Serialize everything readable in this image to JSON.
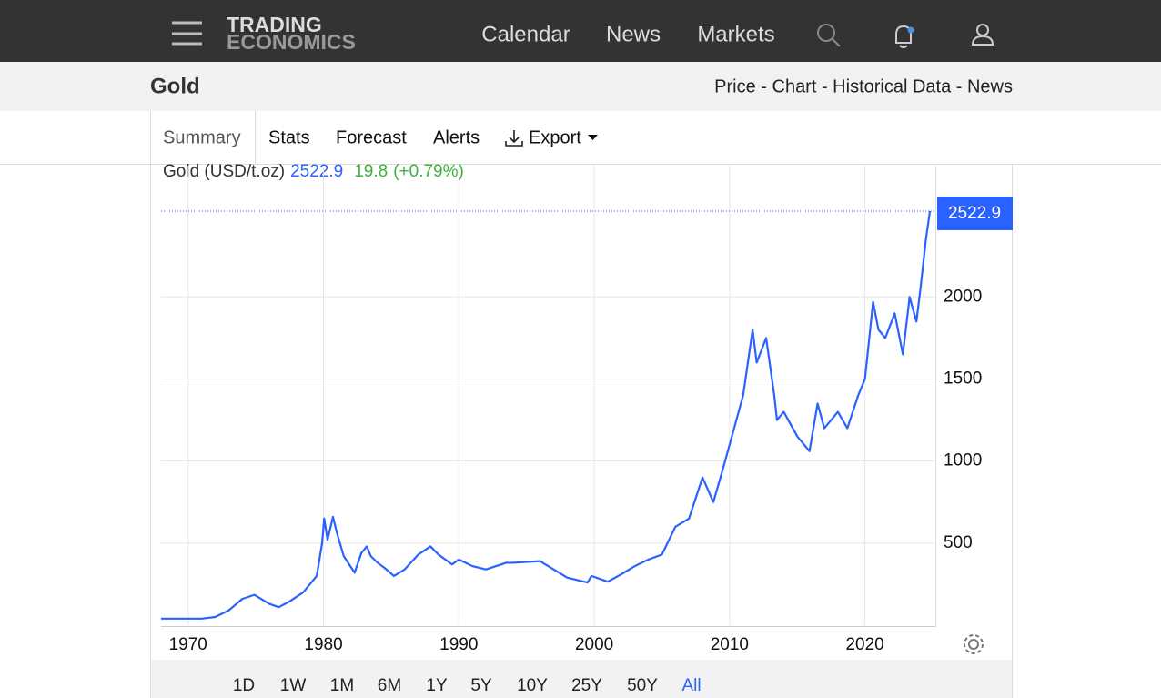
{
  "nav": {
    "logo_top": "TRADING",
    "logo_bottom": "ECONOMICS",
    "links": [
      "Calendar",
      "News",
      "Markets"
    ]
  },
  "subheader": {
    "title": "Gold",
    "links": "Price - Chart - Historical Data - News"
  },
  "tabs": [
    "Summary",
    "Stats",
    "Forecast",
    "Alerts",
    "Export"
  ],
  "ranges": [
    "1D",
    "1W",
    "1M",
    "6M",
    "1Y",
    "5Y",
    "10Y",
    "25Y",
    "50Y",
    "All"
  ],
  "active_range": "All",
  "chart_data": {
    "type": "line",
    "last_value": 2522.9,
    "change": 19.8,
    "change_label": "(+0.79%)",
    "x": [
      1968,
      1971,
      1972,
      1973,
      1974,
      1974.9,
      1976,
      1976.7,
      1977.5,
      1978.5,
      1979.5,
      1979.9,
      1980.05,
      1980.3,
      1980.7,
      1981,
      1981.5,
      1982.3,
      1982.8,
      1983.2,
      1983.5,
      1984,
      1984.5,
      1985.2,
      1986,
      1987,
      1987.9,
      1988.5,
      1989.5,
      1990,
      1991,
      1992,
      1993.5,
      1994,
      1996,
      1997,
      1998,
      1999.5,
      1999.8,
      2001,
      2002,
      2003,
      2004,
      2005,
      2006,
      2007,
      2008,
      2008.8,
      2009.5,
      2010,
      2011,
      2011.7,
      2012,
      2012.7,
      2013.3,
      2013.5,
      2014,
      2015,
      2015.9,
      2016.5,
      2017,
      2018,
      2018.7,
      2019.5,
      2020,
      2020.6,
      2021,
      2021.5,
      2022.2,
      2022.8,
      2023.3,
      2023.8,
      2024.1,
      2024.5,
      2024.8
    ],
    "series": [
      {
        "name": "Gold (USD/t.oz)",
        "color": "#2962ff",
        "values": [
          40,
          40,
          50,
          90,
          160,
          185,
          130,
          110,
          145,
          200,
          300,
          500,
          650,
          520,
          660,
          560,
          420,
          320,
          440,
          480,
          420,
          380,
          350,
          300,
          340,
          430,
          480,
          430,
          370,
          400,
          360,
          340,
          380,
          380,
          390,
          340,
          290,
          260,
          300,
          265,
          310,
          360,
          400,
          430,
          600,
          650,
          900,
          750,
          950,
          1100,
          1400,
          1800,
          1600,
          1750,
          1400,
          1250,
          1300,
          1150,
          1060,
          1350,
          1200,
          1300,
          1200,
          1400,
          1500,
          1970,
          1800,
          1750,
          1900,
          1650,
          2000,
          1850,
          2050,
          2350,
          2522.9
        ]
      }
    ],
    "xlim": [
      1968,
      2025.2
    ],
    "ylim": [
      0,
      2800
    ],
    "xticks": [
      1970,
      1980,
      1990,
      2000,
      2010,
      2020
    ],
    "yticks": [
      500,
      1000,
      1500,
      2000
    ],
    "grid": true
  }
}
